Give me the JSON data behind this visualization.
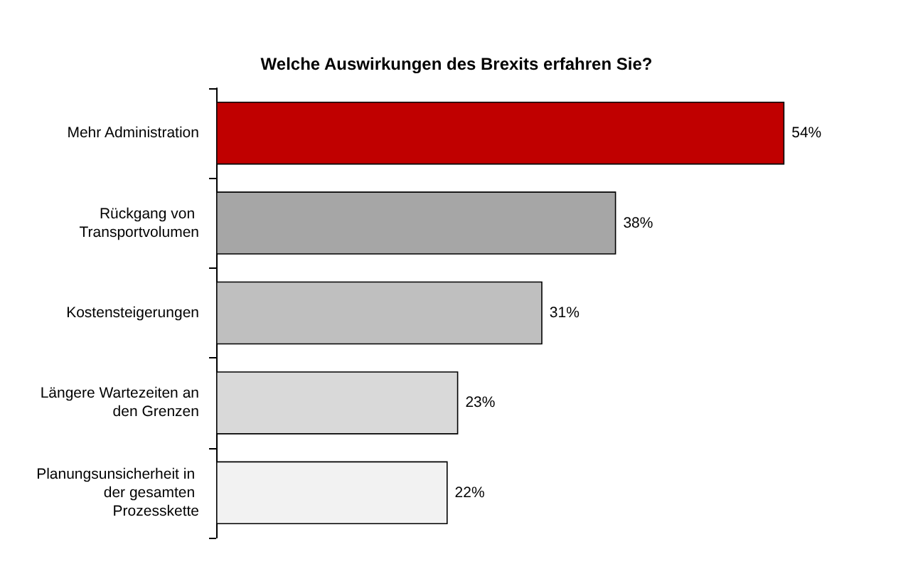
{
  "chart_data": {
    "type": "bar",
    "orientation": "horizontal",
    "title": "Welche Auswirkungen des Brexits erfahren Sie?",
    "categories": [
      "Mehr Administration",
      "Rückgang von Transportvolumen",
      "Kostensteigerungen",
      "Längere Wartezeiten an den Grenzen",
      "Planungsunsicherheit in der gesamten Prozesskette"
    ],
    "values": [
      54,
      38,
      31,
      23,
      22
    ],
    "value_labels": [
      "54%",
      "38%",
      "31%",
      "23%",
      "22%"
    ],
    "colors": [
      "#c00000",
      "#a6a6a6",
      "#bfbfbf",
      "#d9d9d9",
      "#f2f2f2"
    ]
  }
}
